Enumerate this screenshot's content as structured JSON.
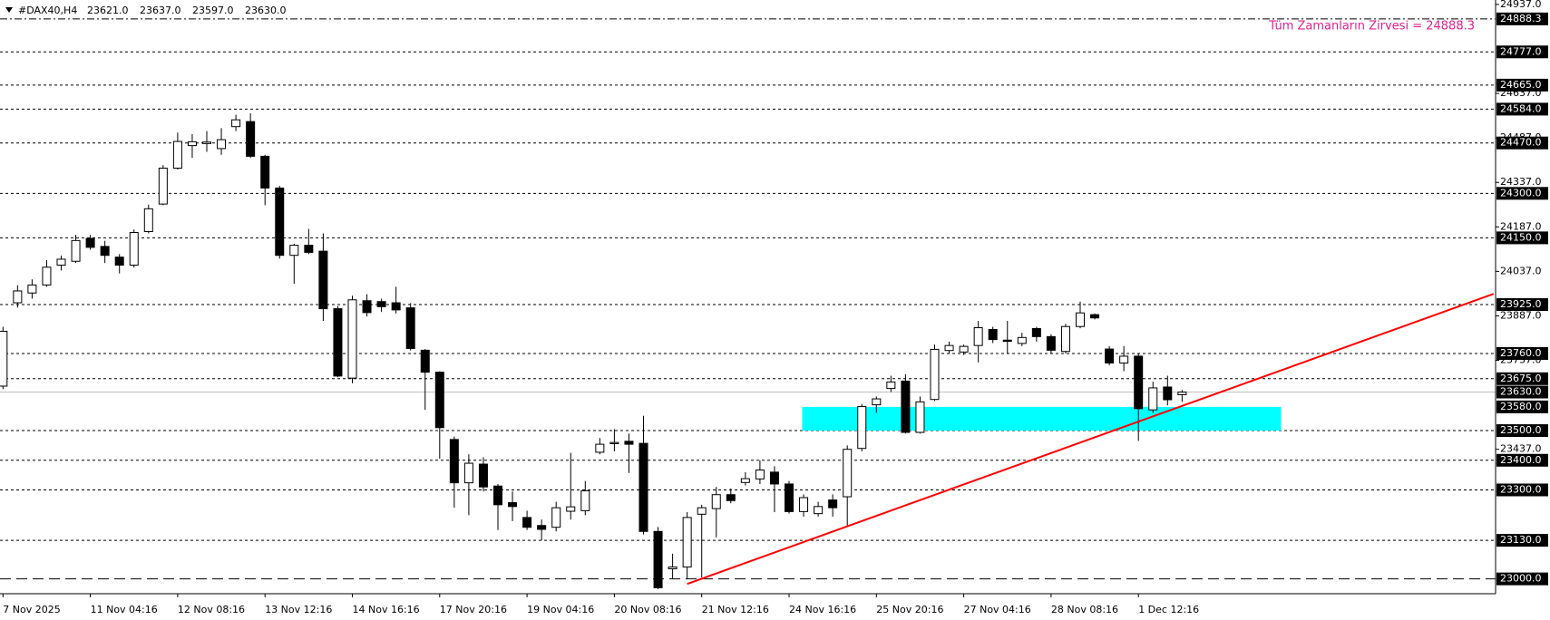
{
  "header": {
    "symbol": "#DAX40,H4",
    "quotes": [
      "23621.0",
      "23637.0",
      "23597.0",
      "23630.0"
    ]
  },
  "chart_data": {
    "type": "candlestick",
    "categories": [
      "7 Nov 2025",
      null,
      null,
      null,
      null,
      null,
      "11 Nov 04:16",
      null,
      null,
      null,
      null,
      null,
      "12 Nov 08:16",
      null,
      null,
      null,
      null,
      null,
      "13 Nov 12:16",
      null,
      null,
      null,
      null,
      null,
      "14 Nov 16:16",
      null,
      null,
      null,
      null,
      null,
      "17 Nov 20:16",
      null,
      null,
      null,
      null,
      null,
      "19 Nov 04:16",
      null,
      null,
      null,
      null,
      null,
      "20 Nov 08:16",
      null,
      null,
      null,
      null,
      null,
      "21 Nov 12:16",
      null,
      null,
      null,
      null,
      null,
      "24 Nov 16:16",
      null,
      null,
      null,
      null,
      null,
      "25 Nov 20:16",
      null,
      null,
      null,
      null,
      null,
      "27 Nov 04:16",
      null,
      null,
      null,
      null,
      null,
      "28 Nov 08:16",
      null,
      null,
      null,
      null,
      null,
      "1 Dec 12:16",
      null,
      null,
      null
    ],
    "open": [
      23650,
      23931,
      23964,
      23991,
      24058,
      24071,
      24148,
      24121,
      24085,
      24058,
      24171,
      24264,
      24385,
      24461,
      24468,
      24451,
      24525,
      24542,
      24425,
      24318,
      24091,
      24125,
      24105,
      23911,
      23677,
      23938,
      23935,
      23931,
      23914,
      23771,
      23697,
      23470,
      23324,
      23387,
      23313,
      23257,
      23207,
      23180,
      23174,
      23228,
      23230,
      23427,
      23456,
      23464,
      23457,
      23160,
      23034,
      23040,
      23218,
      23237,
      23284,
      23325,
      23337,
      23360,
      23320,
      23227,
      23220,
      23266,
      23277,
      23440,
      23587,
      23642,
      23667,
      23494,
      23605,
      23770,
      23765,
      23787,
      23841,
      23805,
      23794,
      23844,
      23817,
      23767,
      23851,
      23891,
      23775,
      23728,
      23751,
      23570,
      23647,
      23621
    ],
    "high": [
      23850,
      23990,
      24010,
      24075,
      24090,
      24160,
      24160,
      24140,
      24095,
      24178,
      24262,
      24395,
      24505,
      24500,
      24510,
      24520,
      24565,
      24570,
      24430,
      24325,
      24130,
      24180,
      24165,
      23920,
      23955,
      23960,
      23945,
      23985,
      23930,
      23775,
      23700,
      23480,
      23420,
      23410,
      23320,
      23295,
      23230,
      23200,
      23260,
      23425,
      23330,
      23475,
      23505,
      23490,
      23550,
      23175,
      23085,
      23225,
      23250,
      23310,
      23305,
      23360,
      23400,
      23380,
      23330,
      23285,
      23260,
      23285,
      23450,
      23590,
      23615,
      23685,
      23690,
      23615,
      23790,
      23800,
      23790,
      23870,
      23850,
      23870,
      23830,
      23850,
      23825,
      23860,
      23935,
      23895,
      23785,
      23785,
      23760,
      23665,
      23685,
      23637
    ],
    "low": [
      23640,
      23915,
      23945,
      23985,
      24040,
      24065,
      24110,
      24065,
      24030,
      24050,
      24165,
      24260,
      24380,
      24420,
      24440,
      24430,
      24510,
      24420,
      24260,
      24080,
      23995,
      24095,
      23870,
      23680,
      23660,
      23885,
      23900,
      23895,
      23770,
      23570,
      23405,
      23240,
      23215,
      23295,
      23165,
      23195,
      23165,
      23130,
      23160,
      23200,
      23215,
      23420,
      23430,
      23357,
      23150,
      22965,
      23000,
      23000,
      23005,
      23140,
      23255,
      23315,
      23320,
      23225,
      23220,
      23210,
      23210,
      23210,
      23180,
      23430,
      23560,
      23630,
      23490,
      23490,
      23600,
      23760,
      23755,
      23730,
      23795,
      23760,
      23785,
      23800,
      23760,
      23760,
      23845,
      23875,
      23720,
      23700,
      23465,
      23560,
      23585,
      23597
    ],
    "close": [
      23835,
      23971,
      23991,
      24051,
      24078,
      24141,
      24118,
      24091,
      24058,
      24168,
      24248,
      24385,
      24475,
      24474,
      24473,
      24481,
      24548,
      24425,
      24318,
      24091,
      24125,
      24101,
      23911,
      23684,
      23941,
      23898,
      23918,
      23907,
      23777,
      23697,
      23510,
      23324,
      23390,
      23310,
      23250,
      23244,
      23174,
      23167,
      23240,
      23243,
      23297,
      23454,
      23460,
      23454,
      23160,
      22970,
      23040,
      23207,
      23240,
      23284,
      23264,
      23338,
      23367,
      23320,
      23227,
      23274,
      23244,
      23240,
      23437,
      23581,
      23607,
      23664,
      23494,
      23597,
      23774,
      23787,
      23784,
      23847,
      23807,
      23801,
      23814,
      23817,
      23771,
      23851,
      23897,
      23880,
      23728,
      23751,
      23574,
      23644,
      23604,
      23630
    ],
    "bull_color": "#ffffff",
    "bear_color": "#000000",
    "ylim": [
      22950,
      24952
    ],
    "yticks": [
      {
        "value": 24937,
        "label": "24937.0"
      },
      {
        "value": 24637,
        "label": "24637.0"
      },
      {
        "value": 24487,
        "label": "24487.0"
      },
      {
        "value": 24337,
        "label": "24337.0"
      },
      {
        "value": 24187,
        "label": "24187.0"
      },
      {
        "value": 24037,
        "label": "24037.0"
      },
      {
        "value": 23887,
        "label": "23887.0"
      },
      {
        "value": 23737,
        "label": "23737.0"
      },
      {
        "value": 23437,
        "label": "23437.0"
      }
    ],
    "levels": [
      {
        "value": 24888.3,
        "line": "dashdot"
      },
      {
        "value": 24777,
        "label": "24777.0",
        "line": "dash"
      },
      {
        "value": 24665,
        "label": "24665.0",
        "line": "dash"
      },
      {
        "value": 24584,
        "label": "24584.0",
        "line": "dash"
      },
      {
        "value": 24470,
        "label": "24470.0",
        "line": "dash"
      },
      {
        "value": 24300,
        "label": "24300.0",
        "line": "dash"
      },
      {
        "value": 24150,
        "label": "24150.0",
        "line": "dash"
      },
      {
        "value": 23925,
        "label": "23925.0",
        "line": "dash"
      },
      {
        "value": 23760,
        "label": "23760.0",
        "line": "dash"
      },
      {
        "value": 23675,
        "label": "23675.0",
        "line": "dash"
      },
      {
        "value": 23630,
        "label": "23630.0",
        "line": "solid"
      },
      {
        "value": 23580,
        "label": "23580.0",
        "line": "none"
      },
      {
        "value": 23500,
        "label": "23500.0",
        "line": "dash"
      },
      {
        "value": 23400,
        "label": "23400.0",
        "line": "dash"
      },
      {
        "value": 23300,
        "label": "23300.0",
        "line": "dash"
      },
      {
        "value": 23130,
        "label": "23130.0",
        "line": "dash"
      },
      {
        "value": 23000,
        "label": "23000.0",
        "line": "longdash"
      }
    ],
    "annotation": {
      "text": "Tüm Zamanların Zirvesi = 24888.3",
      "color": "#e0208f"
    },
    "trendline": {
      "color": "#ff0000",
      "x": [
        47,
        102.4
      ],
      "y": [
        22983,
        23961
      ]
    },
    "zone": {
      "color": "#00ffff",
      "x": [
        54.9,
        87.8
      ],
      "price": [
        23500,
        23580
      ]
    }
  }
}
